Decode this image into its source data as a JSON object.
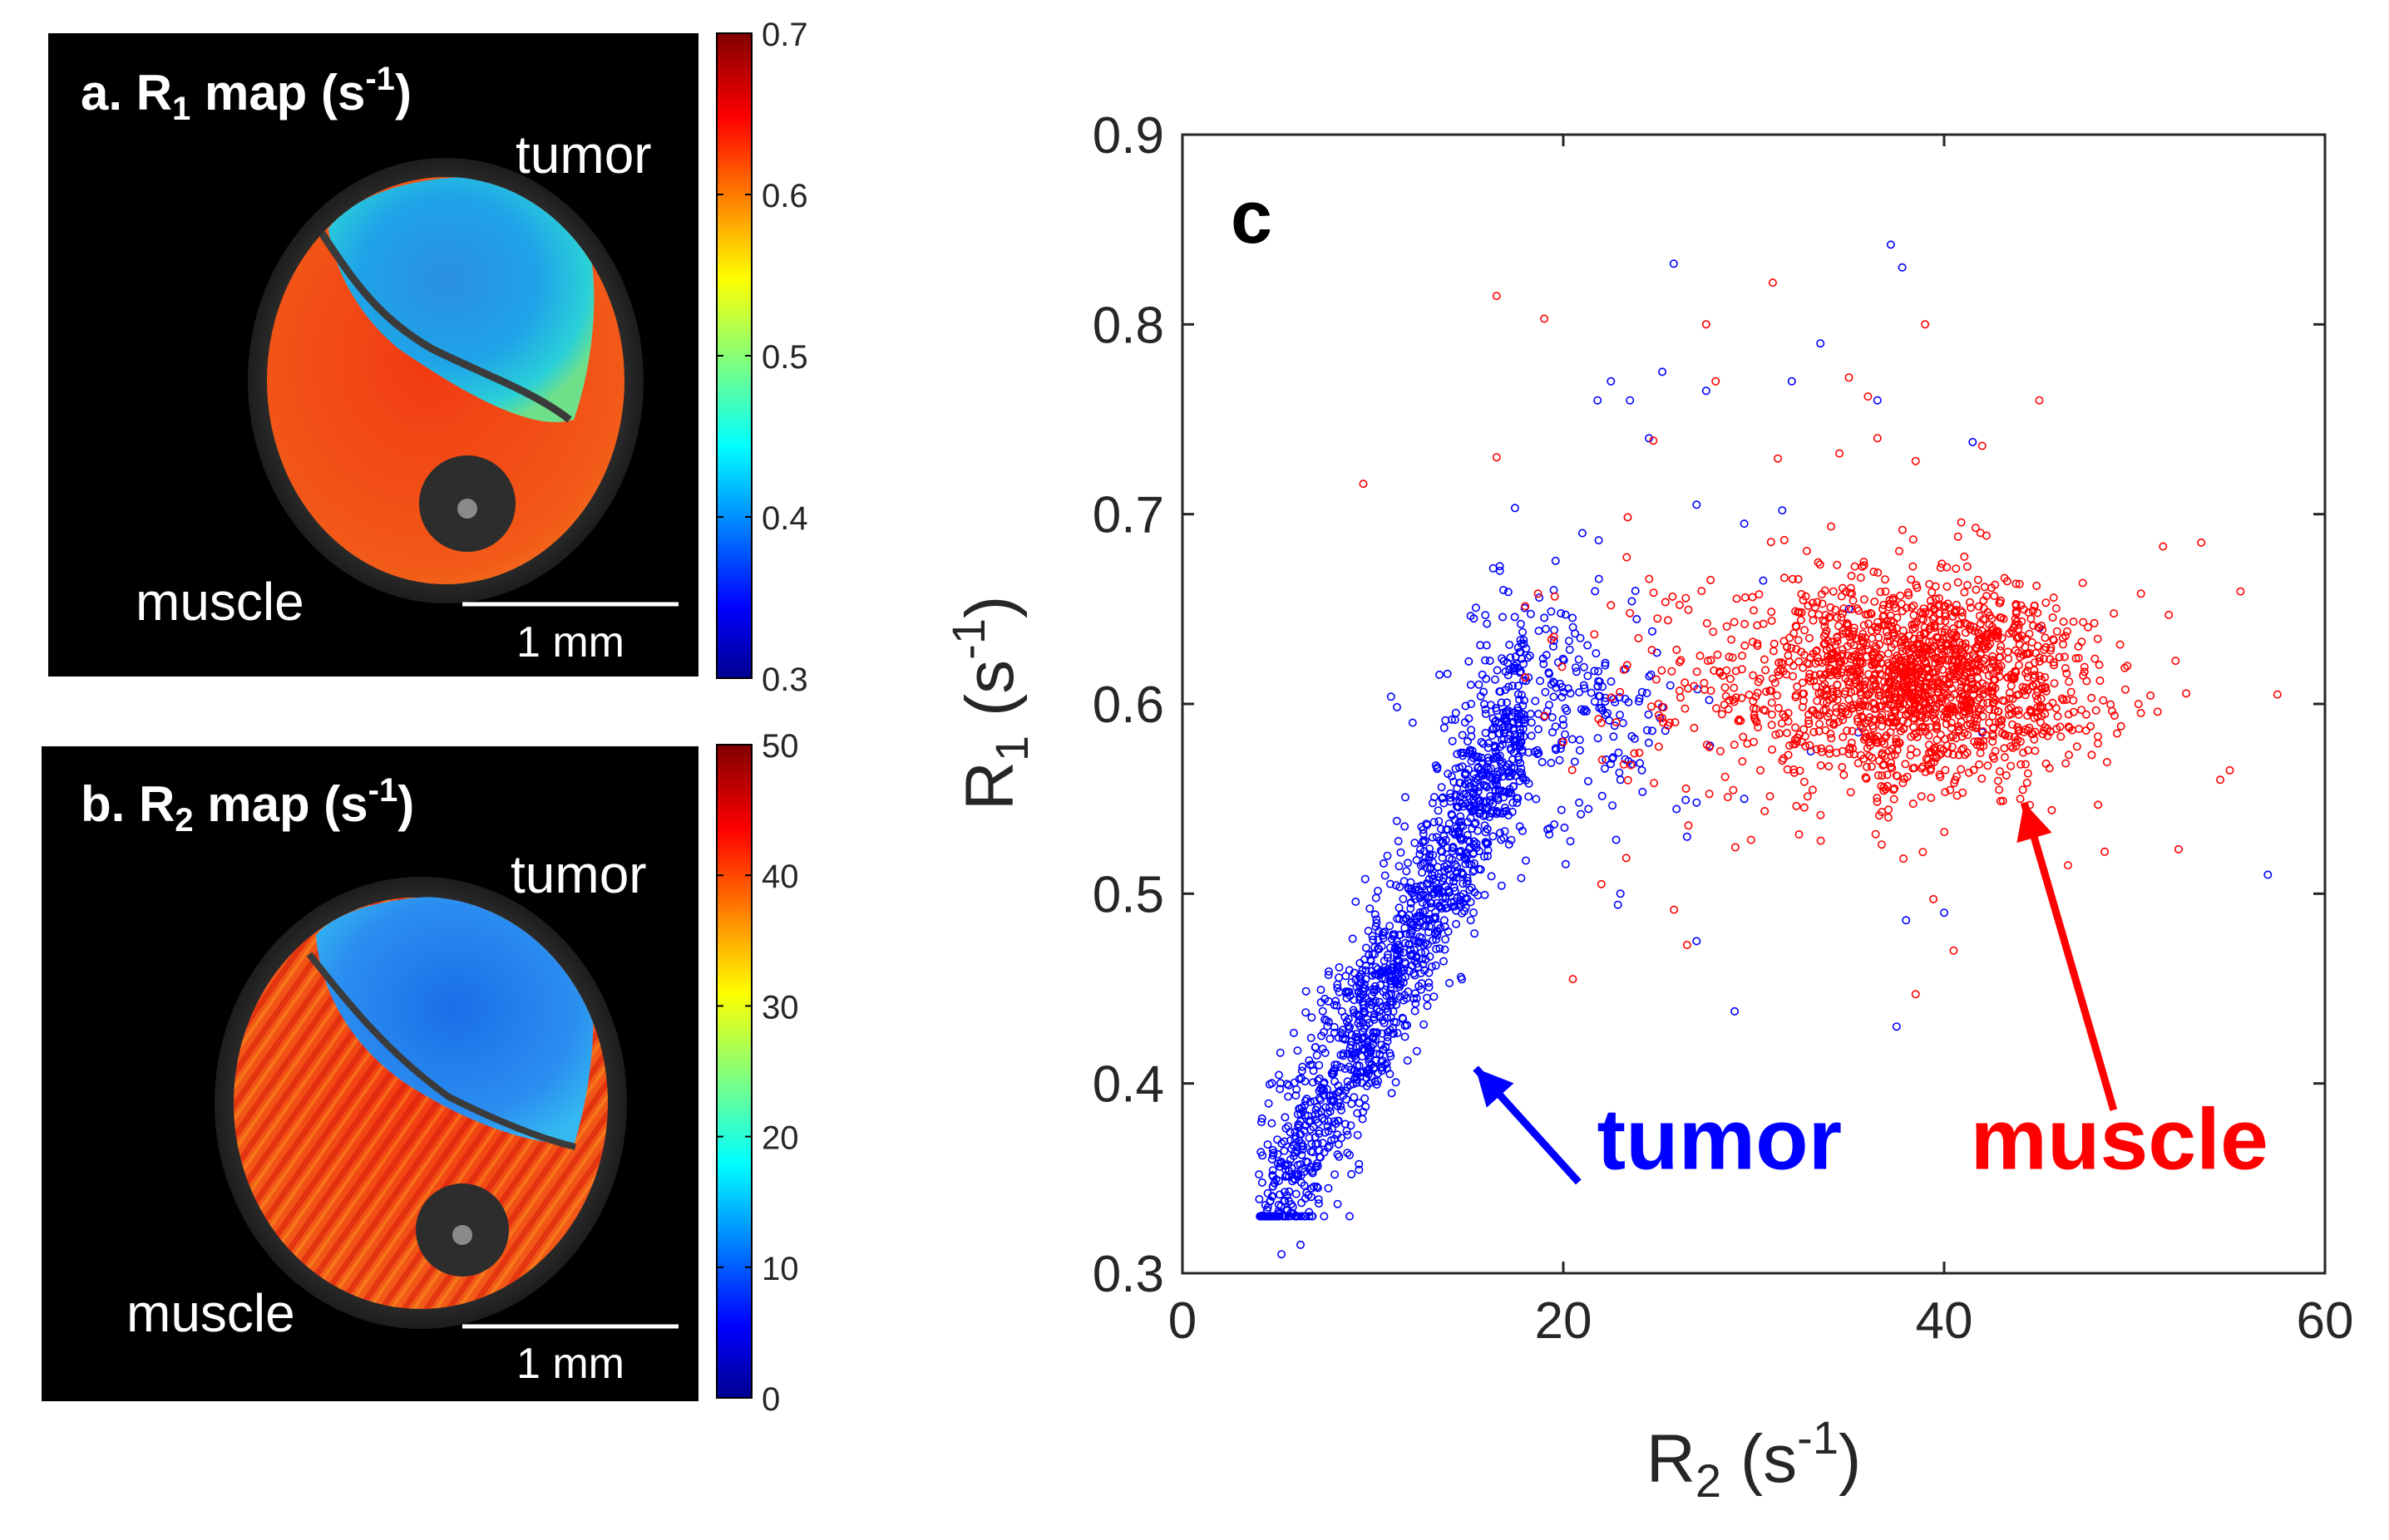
{
  "panels": {
    "a": {
      "title": {
        "prefix": "a. R",
        "sub": "1",
        "mid": " map (s",
        "sup": "-1",
        "suffix": ")"
      },
      "tumor_label": "tumor",
      "muscle_label": "muscle",
      "scale_bar_label": "1 mm",
      "colorbar": {
        "min": 0.3,
        "max": 0.7,
        "ticks": [
          "0.7",
          "0.6",
          "0.5",
          "0.4",
          "0.3"
        ]
      }
    },
    "b": {
      "title": {
        "prefix": "b. R",
        "sub": "2",
        "mid": " map (s",
        "sup": "-1",
        "suffix": ")"
      },
      "tumor_label": "tumor",
      "muscle_label": "muscle",
      "scale_bar_label": "1 mm",
      "colorbar": {
        "min": 0,
        "max": 50,
        "ticks": [
          "50",
          "40",
          "30",
          "20",
          "10",
          "0"
        ]
      }
    }
  },
  "chart_data": {
    "type": "scatter",
    "panel_label": "c",
    "xlabel": {
      "base": "R",
      "sub": "2",
      "unit_open": " (s",
      "sup": "-1",
      "unit_close": ")"
    },
    "ylabel": {
      "base": "R",
      "sub": "1",
      "unit_open": " (s",
      "sup": "-1",
      "unit_close": ")"
    },
    "xlim": [
      0,
      60
    ],
    "ylim": [
      0.3,
      0.9
    ],
    "xticks": [
      "0",
      "20",
      "40",
      "60"
    ],
    "yticks": [
      "0.3",
      "0.4",
      "0.5",
      "0.6",
      "0.7",
      "0.8",
      "0.9"
    ],
    "series": [
      {
        "name": "tumor",
        "color": "#0000ff",
        "bulk": {
          "count": 1400,
          "x_range": [
            4,
            18
          ],
          "line": {
            "slope": 0.0195,
            "intercept": 0.244
          },
          "y_sd": 0.028
        },
        "cloud": {
          "count": 260,
          "x_mean": 20,
          "x_sd": 3.2,
          "y_mean": 0.6,
          "y_sd": 0.035
        },
        "points": [
          [
            5.2,
            0.31
          ],
          [
            6.2,
            0.315
          ],
          [
            5.8,
            0.335
          ],
          [
            4.2,
            0.362
          ],
          [
            25.8,
            0.832
          ],
          [
            37.2,
            0.842
          ],
          [
            37.8,
            0.83
          ],
          [
            25.2,
            0.775
          ],
          [
            22.5,
            0.77
          ],
          [
            21.8,
            0.76
          ],
          [
            23.5,
            0.76
          ],
          [
            27.5,
            0.765
          ],
          [
            32,
            0.77
          ],
          [
            33.5,
            0.79
          ],
          [
            36.5,
            0.76
          ],
          [
            41.5,
            0.738
          ],
          [
            24.5,
            0.74
          ],
          [
            27,
            0.705
          ],
          [
            29.5,
            0.695
          ],
          [
            31.5,
            0.702
          ],
          [
            57,
            0.51
          ],
          [
            38,
            0.486
          ],
          [
            37.5,
            0.43
          ],
          [
            29,
            0.438
          ],
          [
            23,
            0.56
          ],
          [
            29.5,
            0.55
          ],
          [
            33,
            0.575
          ],
          [
            35.5,
            0.585
          ],
          [
            40,
            0.49
          ],
          [
            42,
            0.585
          ],
          [
            45,
            0.64
          ],
          [
            19.5,
            0.66
          ],
          [
            21,
            0.69
          ],
          [
            30.5,
            0.665
          ],
          [
            27,
            0.548
          ],
          [
            26.5,
            0.53
          ],
          [
            23,
            0.5
          ],
          [
            27,
            0.475
          ],
          [
            35,
            0.65
          ]
        ]
      },
      {
        "name": "muscle",
        "color": "#ff0000",
        "bulk": {
          "count": 1450,
          "x_mean": 39,
          "x_sd": 4.2,
          "y_mean": 0.612,
          "y_sd": 0.026
        },
        "cloud": {
          "count": 320,
          "x_mean": 33,
          "x_sd": 8,
          "y_mean": 0.612,
          "y_sd": 0.038
        },
        "points": [
          [
            9.5,
            0.716
          ],
          [
            16.5,
            0.815
          ],
          [
            19,
            0.803
          ],
          [
            16.5,
            0.73
          ],
          [
            27.5,
            0.8
          ],
          [
            31,
            0.822
          ],
          [
            39,
            0.8
          ],
          [
            45,
            0.76
          ],
          [
            36,
            0.762
          ],
          [
            34.5,
            0.732
          ],
          [
            36.5,
            0.74
          ],
          [
            38.5,
            0.728
          ],
          [
            42,
            0.736
          ],
          [
            35,
            0.772
          ],
          [
            28,
            0.77
          ],
          [
            22.5,
            0.652
          ],
          [
            20.5,
            0.455
          ],
          [
            22,
            0.505
          ],
          [
            26.5,
            0.473
          ],
          [
            38.5,
            0.447
          ],
          [
            40.5,
            0.47
          ],
          [
            46.5,
            0.515
          ],
          [
            57.5,
            0.605
          ],
          [
            55,
            0.565
          ],
          [
            54.5,
            0.56
          ],
          [
            51.5,
            0.683
          ],
          [
            53.5,
            0.685
          ],
          [
            20,
            0.58
          ],
          [
            22,
            0.59
          ],
          [
            25,
            0.6
          ],
          [
            30,
            0.58
          ],
          [
            44,
            0.55
          ]
        ]
      }
    ],
    "annotations": [
      {
        "text": "tumor",
        "color": "#0000ff",
        "x": 28.2,
        "y": 0.355,
        "arrow_from": [
          20.8,
          0.348
        ],
        "arrow_to": [
          15.4,
          0.408
        ]
      },
      {
        "text": "muscle",
        "color": "#ff0000",
        "x": 49.2,
        "y": 0.355,
        "arrow_from": [
          48.9,
          0.386
        ],
        "arrow_to": [
          44.2,
          0.548
        ]
      }
    ]
  }
}
